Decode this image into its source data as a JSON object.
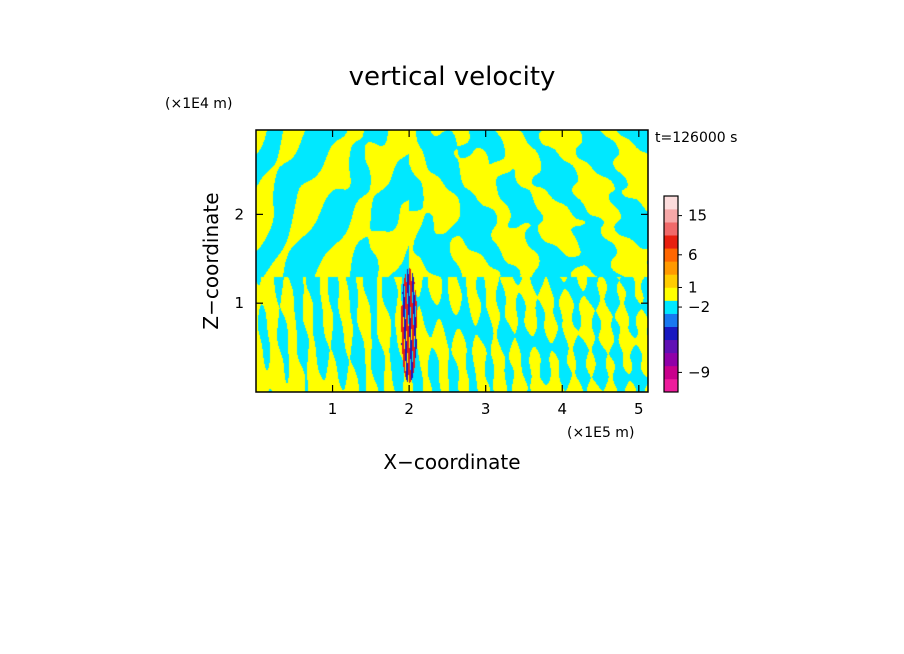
{
  "chart_data": {
    "type": "heatmap",
    "title": "vertical velocity",
    "xlabel": "X−coordinate",
    "ylabel": "Z−coordinate",
    "x_unit": "(×1E5 m)",
    "y_unit": "(×1E4 m)",
    "time_label": "t=126000 s",
    "xlim": [
      0,
      5.12
    ],
    "ylim": [
      0,
      2.95
    ],
    "x_ticks": [
      "1",
      "2",
      "3",
      "4",
      "5"
    ],
    "x_tick_values": [
      1,
      2,
      3,
      4,
      5
    ],
    "y_ticks": [
      "1",
      "2"
    ],
    "y_tick_values": [
      1,
      2
    ],
    "grid": false,
    "colorbar": {
      "levels": [
        {
          "color": "#ee1c9c"
        },
        {
          "color": "#c8008c"
        },
        {
          "color": "#9000a8"
        },
        {
          "color": "#6010b4"
        },
        {
          "color": "#1818c0"
        },
        {
          "color": "#1878f0"
        },
        {
          "color": "#00e8ff"
        },
        {
          "color": "#ffff00"
        },
        {
          "color": "#ffcc00"
        },
        {
          "color": "#ff9900"
        },
        {
          "color": "#ff6600"
        },
        {
          "color": "#e82010"
        },
        {
          "color": "#f06a6a"
        },
        {
          "color": "#f6a8a8"
        },
        {
          "color": "#fcdcdc"
        }
      ],
      "tick_labels": [
        {
          "text": "−9",
          "level": 1
        },
        {
          "text": "−2",
          "level": 6
        },
        {
          "text": "1",
          "level": 7.5
        },
        {
          "text": "6",
          "level": 10
        },
        {
          "text": "15",
          "level": 13
        }
      ]
    },
    "field_colors": {
      "negative": "#00e8ff",
      "positive": "#ffff00",
      "strong_up": "#e82010",
      "strong_down": "#1818c0"
    }
  }
}
